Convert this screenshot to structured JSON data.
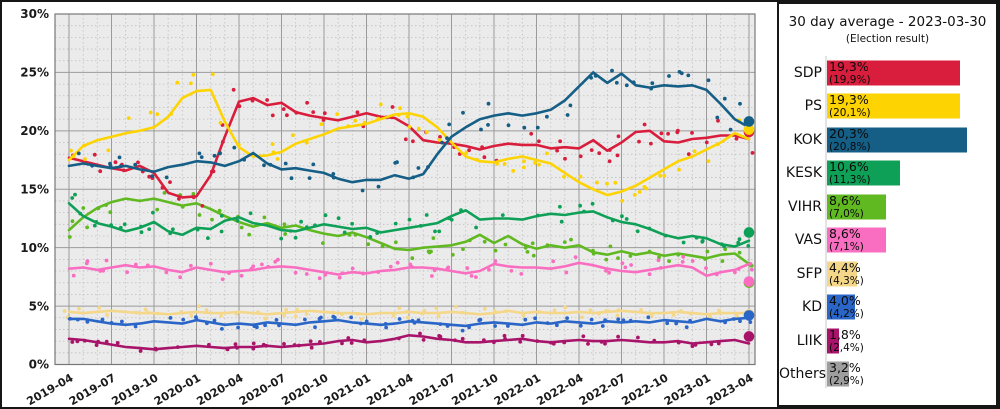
{
  "legend": {
    "title": "30 day average - 2023-03-30",
    "subtitle": "(Election result)",
    "entries": [
      {
        "label": "SDP",
        "avg": 19.3,
        "avg_text": "19,3%",
        "result_text": "(19,9%)",
        "color": "#d91d3c"
      },
      {
        "label": "PS",
        "avg": 19.3,
        "avg_text": "19,3%",
        "result_text": "(20,1%)",
        "color": "#fdd301"
      },
      {
        "label": "KOK",
        "avg": 20.3,
        "avg_text": "20,3%",
        "result_text": "(20,8%)",
        "color": "#155e86"
      },
      {
        "label": "KESK",
        "avg": 10.6,
        "avg_text": "10,6%",
        "result_text": "(11,3%)",
        "color": "#0fa057"
      },
      {
        "label": "VIHR",
        "avg": 8.6,
        "avg_text": "8,6%",
        "result_text": "(7,0%)",
        "color": "#61b922"
      },
      {
        "label": "VAS",
        "avg": 8.6,
        "avg_text": "8,6%",
        "result_text": "(7,1%)",
        "color": "#f96ec0"
      },
      {
        "label": "SFP",
        "avg": 4.4,
        "avg_text": "4,4%",
        "result_text": "(4,3%)",
        "color": "#f5d789"
      },
      {
        "label": "KD",
        "avg": 4.0,
        "avg_text": "4,0%",
        "result_text": "(4,2%)",
        "color": "#2a66c8"
      },
      {
        "label": "LIIK",
        "avg": 1.8,
        "avg_text": "1,8%",
        "result_text": "(2,4%)",
        "color": "#a8146a"
      },
      {
        "label": "Others",
        "avg": 3.2,
        "avg_text": "3,2%",
        "result_text": "(2,9%)",
        "color": "#9e9e9e"
      }
    ]
  },
  "chart_data": {
    "type": "line",
    "title": "",
    "xlabel": "",
    "ylabel": "",
    "ylim": [
      0,
      30
    ],
    "grid": true,
    "x_range_months": [
      "2019-04",
      "2023-04"
    ],
    "x_tick_labels": [
      "2019-04",
      "2019-07",
      "2019-10",
      "2020-01",
      "2020-04",
      "2020-07",
      "2020-10",
      "2021-01",
      "2021-04",
      "2021-07",
      "2021-10",
      "2022-01",
      "2022-04",
      "2022-07",
      "2022-10",
      "2023-01",
      "2023-04"
    ],
    "y_tick_labels": [
      "0%",
      "5%",
      "10%",
      "15%",
      "20%",
      "25%",
      "30%"
    ],
    "series": [
      {
        "name": "SDP",
        "color": "#d91d3c",
        "election_result": 19.9,
        "values": [
          17.7,
          17.4,
          17.1,
          16.8,
          16.6,
          17.0,
          16.4,
          14.7,
          14.3,
          14.4,
          16.2,
          19.5,
          22.5,
          22.8,
          22.2,
          22.4,
          21.6,
          21.3,
          21.1,
          20.9,
          21.2,
          21.5,
          21.2,
          21.1,
          20.4,
          19.2,
          19.0,
          18.9,
          18.7,
          18.4,
          18.7,
          18.9,
          18.8,
          18.8,
          18.5,
          18.6,
          18.5,
          19.2,
          18.3,
          19.0,
          19.9,
          20.0,
          19.1,
          19.0,
          19.3,
          19.4,
          19.6,
          19.6,
          19.3
        ]
      },
      {
        "name": "PS",
        "color": "#fdd301",
        "election_result": 20.1,
        "values": [
          17.5,
          18.7,
          19.2,
          19.5,
          19.8,
          20.0,
          20.3,
          21.2,
          22.8,
          23.4,
          23.5,
          20.8,
          18.6,
          17.8,
          17.9,
          18.2,
          18.9,
          19.3,
          19.7,
          20.2,
          20.4,
          20.6,
          21.0,
          21.4,
          21.5,
          21.2,
          20.3,
          19.0,
          17.8,
          17.4,
          17.3,
          17.6,
          17.8,
          17.5,
          17.2,
          16.4,
          15.6,
          15.0,
          14.5,
          14.8,
          15.3,
          16.0,
          16.7,
          17.4,
          17.8,
          18.4,
          19.0,
          19.8,
          19.3
        ]
      },
      {
        "name": "KOK",
        "color": "#155e86",
        "election_result": 20.8,
        "values": [
          17.0,
          17.2,
          17.0,
          16.8,
          17.0,
          16.7,
          16.5,
          16.9,
          17.1,
          17.4,
          17.3,
          17.0,
          17.4,
          18.1,
          17.2,
          16.7,
          16.8,
          16.6,
          16.4,
          15.9,
          15.6,
          15.8,
          15.8,
          16.2,
          15.9,
          16.3,
          18.0,
          19.5,
          20.3,
          21.0,
          21.3,
          21.5,
          21.3,
          21.5,
          21.8,
          22.6,
          23.8,
          25.0,
          24.1,
          24.9,
          23.9,
          23.7,
          23.9,
          23.8,
          23.9,
          23.5,
          22.3,
          21.0,
          20.3
        ]
      },
      {
        "name": "KESK",
        "color": "#0fa057",
        "election_result": 11.3,
        "values": [
          13.8,
          12.7,
          12.1,
          11.8,
          11.4,
          11.7,
          12.2,
          11.4,
          11.1,
          11.7,
          11.6,
          12.3,
          12.6,
          12.1,
          11.9,
          11.5,
          11.4,
          11.7,
          12.0,
          11.8,
          11.6,
          11.7,
          11.3,
          11.5,
          11.7,
          11.9,
          12.1,
          12.7,
          13.2,
          12.4,
          12.5,
          12.5,
          12.4,
          12.7,
          12.9,
          12.8,
          13.0,
          13.1,
          12.6,
          12.2,
          12.0,
          11.6,
          11.1,
          10.8,
          11.0,
          10.8,
          10.3,
          10.1,
          10.6
        ]
      },
      {
        "name": "VIHR",
        "color": "#61b922",
        "election_result": 7.0,
        "values": [
          11.5,
          12.6,
          13.4,
          13.9,
          14.2,
          14.0,
          14.2,
          13.9,
          13.6,
          13.8,
          13.3,
          12.7,
          12.2,
          11.8,
          12.1,
          11.7,
          11.9,
          11.5,
          11.2,
          11.0,
          11.3,
          10.9,
          10.4,
          9.9,
          9.8,
          10.0,
          10.1,
          10.2,
          10.5,
          11.1,
          10.4,
          11.0,
          10.3,
          9.9,
          10.2,
          10.0,
          10.2,
          9.6,
          9.4,
          9.7,
          9.4,
          9.6,
          9.3,
          9.5,
          9.3,
          9.1,
          9.4,
          9.5,
          8.6
        ]
      },
      {
        "name": "VAS",
        "color": "#f96ec0",
        "election_result": 7.1,
        "values": [
          8.2,
          8.3,
          8.1,
          8.3,
          8.5,
          8.3,
          8.4,
          8.1,
          7.9,
          8.3,
          8.1,
          7.9,
          8.0,
          8.1,
          8.3,
          8.4,
          8.3,
          8.1,
          7.9,
          7.7,
          7.9,
          7.8,
          8.0,
          8.1,
          8.3,
          8.3,
          8.2,
          8.0,
          7.8,
          8.0,
          8.6,
          8.4,
          8.3,
          8.3,
          8.2,
          8.4,
          8.7,
          8.5,
          8.2,
          8.0,
          7.9,
          8.1,
          8.3,
          8.5,
          8.3,
          7.6,
          7.9,
          8.1,
          8.6
        ]
      },
      {
        "name": "SFP",
        "color": "#f5d789",
        "election_result": 4.3,
        "values": [
          4.5,
          4.4,
          4.5,
          4.6,
          4.5,
          4.4,
          4.4,
          4.3,
          4.4,
          4.5,
          4.4,
          4.4,
          4.5,
          4.4,
          4.3,
          4.4,
          4.5,
          4.6,
          4.5,
          4.4,
          4.4,
          4.3,
          4.4,
          4.4,
          4.5,
          4.4,
          4.4,
          4.5,
          4.4,
          4.3,
          4.4,
          4.6,
          4.4,
          4.5,
          4.4,
          4.4,
          4.5,
          4.4,
          4.5,
          4.6,
          4.5,
          4.4,
          4.4,
          4.5,
          4.4,
          4.3,
          4.4,
          4.4,
          4.4
        ]
      },
      {
        "name": "KD",
        "color": "#2a66c8",
        "election_result": 4.2,
        "values": [
          3.9,
          3.9,
          3.7,
          3.5,
          3.4,
          3.5,
          3.7,
          3.6,
          3.5,
          3.8,
          3.6,
          3.4,
          3.5,
          3.4,
          3.6,
          3.5,
          3.4,
          3.6,
          3.7,
          3.8,
          3.6,
          3.5,
          3.4,
          3.5,
          3.7,
          3.6,
          3.5,
          3.4,
          3.3,
          3.5,
          3.6,
          3.5,
          3.4,
          3.6,
          3.5,
          3.7,
          3.6,
          3.5,
          3.7,
          3.6,
          3.7,
          3.6,
          3.8,
          3.7,
          3.6,
          3.9,
          3.7,
          3.9,
          4.0
        ]
      },
      {
        "name": "LIIK",
        "color": "#a8146a",
        "election_result": 2.4,
        "values": [
          2.2,
          2.1,
          1.9,
          1.7,
          1.5,
          1.4,
          1.3,
          1.4,
          1.5,
          1.6,
          1.5,
          1.4,
          1.5,
          1.5,
          1.6,
          1.5,
          1.6,
          1.7,
          1.8,
          2.0,
          2.1,
          1.9,
          2.0,
          2.2,
          2.5,
          2.4,
          2.2,
          2.1,
          1.9,
          1.9,
          2.0,
          2.1,
          2.2,
          2.0,
          1.9,
          2.0,
          2.1,
          2.0,
          2.0,
          2.1,
          2.0,
          1.9,
          1.9,
          2.0,
          1.8,
          1.9,
          2.0,
          2.1,
          1.8
        ]
      }
    ]
  }
}
